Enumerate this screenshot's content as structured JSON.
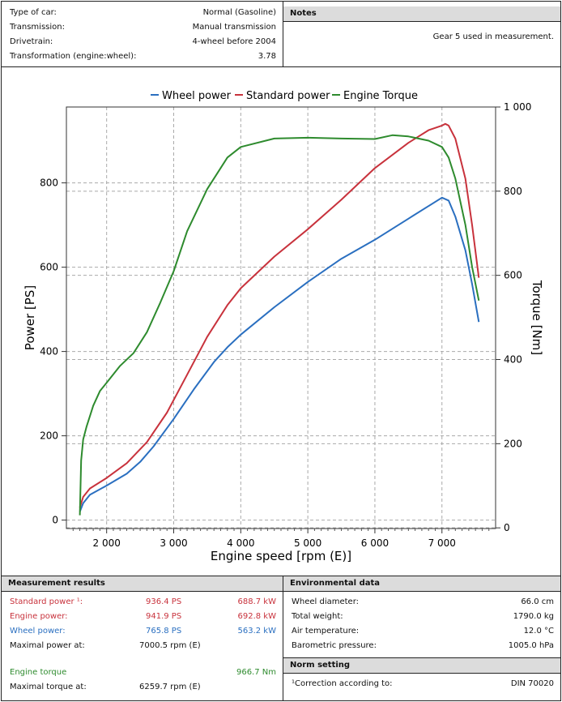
{
  "header": {
    "rows": [
      {
        "label": "Type of car:",
        "value": "Normal (Gasoline)"
      },
      {
        "label": "Transmission:",
        "value": "Manual transmission"
      },
      {
        "label": "Drivetrain:",
        "value": "4-wheel before 2004"
      },
      {
        "label": "Transformation (engine:wheel):",
        "value": "3.78"
      }
    ],
    "notes_title": "Notes",
    "notes_text": "Gear 5 used in measurement."
  },
  "chart_data": {
    "type": "line",
    "title": "",
    "xlabel": "Engine speed [rpm (E)]",
    "ylabel": "Power [PS]",
    "y2label": "Torque [Nm]",
    "xlim": [
      1400,
      7800
    ],
    "ylim": [
      -20,
      980
    ],
    "y2lim": [
      -1.6,
      1000
    ],
    "x_ticks": [
      2000,
      3000,
      4000,
      5000,
      6000,
      7000
    ],
    "x_tick_labels": [
      "2 000",
      "3 000",
      "4 000",
      "5 000",
      "6 000",
      "7 000"
    ],
    "y_ticks": [
      0,
      200,
      400,
      600,
      800
    ],
    "y_tick_labels": [
      "0",
      "200",
      "400",
      "600",
      "800"
    ],
    "y2_ticks": [
      0,
      200,
      400,
      600,
      800,
      1000
    ],
    "y2_tick_labels": [
      "0",
      "200",
      "400",
      "600",
      "800",
      "1 000"
    ],
    "legend_position": "top-center",
    "series": [
      {
        "name": "Wheel power",
        "color": "#2a6fc0",
        "axis": "left",
        "x": [
          1600,
          1650,
          1750,
          2000,
          2300,
          2500,
          2700,
          3000,
          3300,
          3600,
          3800,
          4000,
          4500,
          5000,
          5500,
          6000,
          6500,
          6800,
          7000,
          7100,
          7200,
          7350,
          7450,
          7550
        ],
        "y": [
          20,
          40,
          60,
          82,
          110,
          138,
          175,
          240,
          310,
          375,
          410,
          440,
          505,
          565,
          620,
          665,
          715,
          745,
          765,
          758,
          720,
          640,
          560,
          470
        ]
      },
      {
        "name": "Standard power",
        "color": "#c8323c",
        "axis": "left",
        "x": [
          1600,
          1650,
          1750,
          2000,
          2300,
          2600,
          2900,
          3200,
          3500,
          3800,
          4000,
          4500,
          5000,
          5500,
          6000,
          6500,
          6800,
          7000,
          7050,
          7100,
          7200,
          7350,
          7450,
          7550
        ],
        "y": [
          30,
          55,
          75,
          100,
          135,
          185,
          255,
          345,
          435,
          510,
          550,
          625,
          690,
          760,
          835,
          895,
          925,
          936,
          940,
          936,
          905,
          810,
          700,
          575
        ]
      },
      {
        "name": "Engine Torque",
        "color": "#2e8b2e",
        "axis": "right",
        "x": [
          1600,
          1620,
          1650,
          1700,
          1800,
          1900,
          2000,
          2200,
          2400,
          2600,
          2800,
          3000,
          3200,
          3500,
          3800,
          4000,
          4500,
          5000,
          5500,
          6000,
          6260,
          6500,
          6800,
          7000,
          7100,
          7200,
          7350,
          7450,
          7550
        ],
        "y": [
          30,
          160,
          210,
          240,
          290,
          325,
          345,
          385,
          415,
          465,
          535,
          610,
          705,
          805,
          880,
          905,
          925,
          927,
          925,
          924,
          933,
          930,
          920,
          905,
          880,
          830,
          720,
          620,
          540
        ]
      }
    ]
  },
  "measurement": {
    "title": "Measurement results",
    "standard_label": "Standard power ¹:",
    "standard_ps": "936.4 PS",
    "standard_kw": "688.7 kW",
    "engine_label": "Engine power:",
    "engine_ps": "941.9 PS",
    "engine_kw": "692.8 kW",
    "wheel_label": "Wheel power:",
    "wheel_ps": "765.8 PS",
    "wheel_kw": "563.2 kW",
    "maxpower_label": "Maximal power at:",
    "maxpower_value": "7000.5 rpm (E)",
    "torque_label": "Engine torque",
    "torque_value": "966.7 Nm",
    "maxtorque_label": "Maximal torque at:",
    "maxtorque_value": "6259.7 rpm (E)"
  },
  "environment": {
    "title": "Environmental data",
    "rows": [
      {
        "label": "Wheel diameter:",
        "value": "66.0 cm"
      },
      {
        "label": "Total weight:",
        "value": "1790.0 kg"
      },
      {
        "label": "Air temperature:",
        "value": "12.0 °C"
      },
      {
        "label": "Barometric pressure:",
        "value": "1005.0 hPa"
      }
    ]
  },
  "norm": {
    "title": "Norm setting",
    "label": "¹Correction according to:",
    "value": "DIN 70020"
  }
}
